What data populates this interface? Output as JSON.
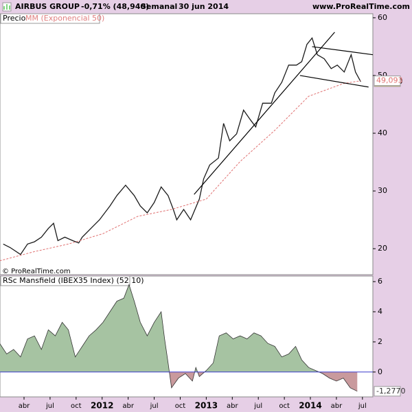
{
  "header": {
    "title": "AIRBUS GROUP",
    "change": "-0,71% (48,940)",
    "period": "Semanal",
    "date": "30 jun 2014",
    "site": "www.ProRealTime.com"
  },
  "chart_data": [
    {
      "type": "line",
      "legend": [
        "Precio",
        "MM (Exponencial 50)"
      ],
      "credit": "© ProRealTime.com",
      "xlim": [
        0.23,
        43.2
      ],
      "ylim": [
        15.5,
        60.7
      ],
      "yticks": [
        20,
        30,
        40,
        50,
        60
      ],
      "series": [
        {
          "name": "Precio",
          "color": "#1a1a1a",
          "x": [
            0.6,
            1.4,
            2.6,
            3.4,
            4.2,
            5.0,
            5.8,
            6.4,
            6.9,
            7.7,
            8.6,
            9.3,
            9.7,
            10.9,
            11.7,
            12.9,
            13.7,
            14.7,
            15.7,
            16.4,
            17.2,
            18.0,
            18.8,
            19.6,
            20.2,
            20.6,
            21.4,
            22.2,
            23.2,
            23.7,
            24.4,
            25.4,
            26.0,
            26.7,
            27.5,
            28.3,
            29.1,
            29.7,
            30.5,
            31.5,
            31.9,
            32.7,
            33.5,
            34.4,
            35.0,
            35.6,
            36.2,
            36.8,
            37.6,
            38.4,
            39.1,
            39.9,
            40.7,
            41.2,
            41.8
          ],
          "values": [
            20.8,
            20.2,
            19.0,
            20.8,
            21.2,
            22.0,
            23.5,
            24.4,
            21.4,
            22.0,
            21.4,
            21.0,
            22.0,
            23.8,
            25.0,
            27.4,
            29.2,
            31.0,
            29.2,
            27.4,
            26.2,
            28.0,
            30.7,
            29.2,
            26.8,
            25.0,
            26.8,
            25.0,
            28.6,
            32.1,
            34.5,
            35.7,
            41.7,
            38.7,
            39.9,
            44.0,
            42.3,
            41.1,
            45.2,
            45.2,
            47.0,
            48.8,
            51.8,
            51.8,
            52.4,
            55.4,
            56.5,
            53.6,
            52.9,
            51.2,
            51.8,
            50.6,
            53.6,
            50.6,
            48.94
          ],
          "value_labels": [
            null,
            null,
            null,
            null,
            null,
            null,
            null,
            null,
            null,
            null,
            null,
            null,
            null,
            null,
            null,
            null,
            null,
            null,
            null,
            null,
            null,
            null,
            null,
            null,
            null,
            null,
            null,
            null,
            null,
            null,
            null,
            null,
            null,
            null,
            null,
            null,
            null,
            null,
            null,
            null,
            null,
            null,
            null,
            null,
            null,
            null,
            null,
            null,
            null,
            null,
            null,
            null,
            null,
            null,
            "48,940"
          ]
        },
        {
          "name": "MM (Exponencial 50)",
          "color": "#e07070",
          "dashed": true,
          "x": [
            0.2,
            4.2,
            8.1,
            12.1,
            16.1,
            20.0,
            24.0,
            27.9,
            31.9,
            35.8,
            39.8,
            41.8
          ],
          "values": [
            17.9,
            19.5,
            20.8,
            22.6,
            25.6,
            26.8,
            28.6,
            35.1,
            40.5,
            46.4,
            48.6,
            49.093
          ],
          "value_labels": [
            null,
            null,
            null,
            null,
            null,
            null,
            null,
            null,
            null,
            null,
            null,
            "49,093"
          ]
        }
      ],
      "trendlines": [
        {
          "x": [
            22.6,
            38.8
          ],
          "y": [
            29.4,
            57.5
          ]
        },
        {
          "x": [
            36.2,
            43.2
          ],
          "y": [
            55.0,
            53.6
          ]
        },
        {
          "x": [
            34.8,
            42.7
          ],
          "y": [
            50.0,
            48.0
          ]
        }
      ]
    },
    {
      "type": "area",
      "title": "RSc Mansfield (IBEX35 Index) (52 10)",
      "xlim": [
        0.23,
        43.2
      ],
      "ylim": [
        -1.65,
        6.37
      ],
      "yticks": [
        0,
        2,
        4,
        6
      ],
      "xticks": [
        {
          "value": 3,
          "label": "abr"
        },
        {
          "value": 6,
          "label": "jul"
        },
        {
          "value": 9,
          "label": "oct"
        },
        {
          "value": 12,
          "label": "2012"
        },
        {
          "value": 15,
          "label": "abr"
        },
        {
          "value": 18,
          "label": "jul"
        },
        {
          "value": 21,
          "label": "oct"
        },
        {
          "value": 24,
          "label": "2013"
        },
        {
          "value": 27,
          "label": "abr"
        },
        {
          "value": 30,
          "label": "jul"
        },
        {
          "value": 33,
          "label": "oct"
        },
        {
          "value": 36,
          "label": "2014"
        },
        {
          "value": 39,
          "label": "abr"
        },
        {
          "value": 42,
          "label": "jul"
        }
      ],
      "series": [
        {
          "name": "RSc Mansfield",
          "color": "#333333",
          "positive_color": "#a6c3a2",
          "negative_color": "#c99a9d",
          "zero_color": "#3a3acc",
          "x": [
            0.2,
            1.0,
            1.8,
            2.6,
            3.4,
            4.2,
            5.0,
            5.8,
            6.6,
            7.4,
            8.1,
            8.9,
            9.7,
            10.5,
            11.3,
            12.1,
            12.9,
            13.7,
            14.5,
            15.1,
            15.7,
            16.4,
            17.2,
            18.0,
            18.8,
            19.2,
            19.6,
            20.0,
            20.8,
            21.6,
            22.4,
            22.8,
            23.2,
            24.0,
            24.8,
            25.5,
            26.3,
            27.1,
            27.9,
            28.7,
            29.5,
            30.3,
            31.1,
            31.9,
            32.7,
            33.5,
            34.3,
            35.0,
            35.8,
            36.6,
            37.4,
            38.2,
            39.0,
            39.8,
            40.6,
            41.4
          ],
          "values": [
            1.9,
            1.2,
            1.5,
            1.0,
            2.2,
            2.4,
            1.5,
            2.8,
            2.4,
            3.3,
            2.8,
            1.0,
            1.7,
            2.4,
            2.8,
            3.3,
            4.0,
            4.7,
            4.9,
            5.8,
            4.7,
            3.3,
            2.4,
            3.3,
            4.0,
            2.2,
            0.6,
            -1.05,
            -0.4,
            -0.1,
            -0.6,
            0.3,
            -0.3,
            0.1,
            0.6,
            2.4,
            2.6,
            2.2,
            2.4,
            2.2,
            2.6,
            2.4,
            1.9,
            1.7,
            1.0,
            1.2,
            1.7,
            0.8,
            0.3,
            0.1,
            -0.1,
            -0.4,
            -0.6,
            -0.4,
            -1.05,
            -1.277
          ],
          "value_labels": [
            null,
            null,
            null,
            null,
            null,
            null,
            null,
            null,
            null,
            null,
            null,
            null,
            null,
            null,
            null,
            null,
            null,
            null,
            null,
            null,
            null,
            null,
            null,
            null,
            null,
            null,
            null,
            null,
            null,
            null,
            null,
            null,
            null,
            null,
            null,
            null,
            null,
            null,
            null,
            null,
            null,
            null,
            null,
            null,
            null,
            null,
            null,
            null,
            null,
            null,
            null,
            null,
            null,
            null,
            null,
            "-1,2770"
          ]
        }
      ]
    }
  ]
}
